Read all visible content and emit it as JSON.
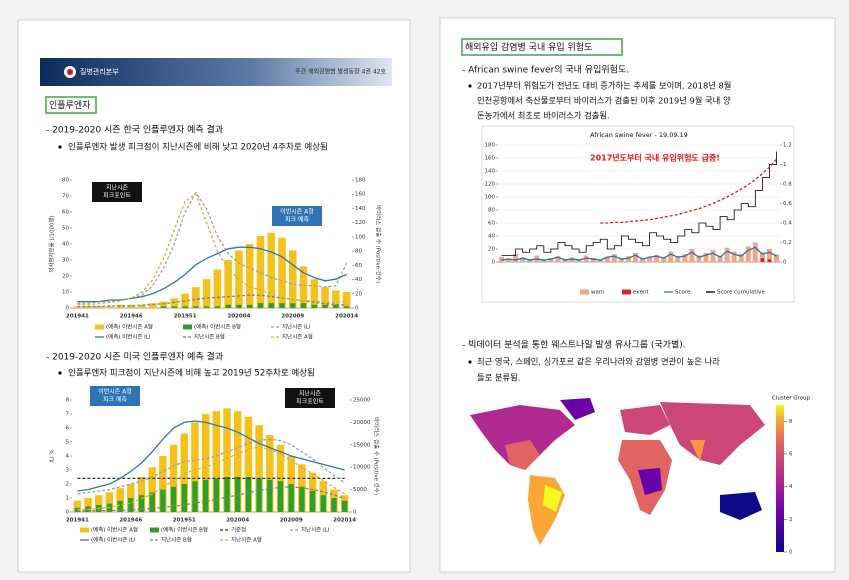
{
  "document": {
    "left": {
      "header": {
        "org": "질병관리본부",
        "issue": "주간 해외감염병 발생동향 4권 42호"
      },
      "section": "인플루엔자",
      "items": [
        {
          "heading": "- 2019-2020 시즌 한국 인플루엔자 예측 결과",
          "bullet": "인플루엔자 발생 피크점이 지난시즌에 비해 낮고 2020년 4주차로 예상됨"
        },
        {
          "heading": "- 2019-2020 시즌 미국 인플루엔자 예측 결과",
          "bullet": "인플루엔자 피크점이 지난시즌에 비해 높고 2019년 52주차로 예상됨"
        }
      ]
    },
    "right": {
      "section": "해외유입 감염병 국내 유입 위험도",
      "items": [
        {
          "heading": "- African swine fever의 국내 유입위험도.",
          "bullet": [
            "2017년부터 위험도가 전년도 대비 증가하는 추세를 보이며, 2018년 8월",
            "인천공항에서 축산물로부터 바이러스가 검출된 이후 2019년 9월 국내 양",
            "돈농가에서 최초로 바이러스가 검출됨."
          ]
        },
        {
          "heading": "- 빅데이터 분석을 통한 웨스트나일 발생 유사그룹 (국가별).",
          "bullet": [
            "최근 영국, 스페인, 싱가포르 같은 우리나라와 감염병 연관이 높은 나라",
            "들로 분류됨."
          ]
        }
      ]
    },
    "map": {
      "title": "Cluster Group",
      "range": [
        0,
        9
      ],
      "ticks": [
        0,
        2,
        4,
        6,
        8
      ]
    }
  },
  "chart_data": [
    {
      "type": "combo",
      "ylabel": "의사환자분율 (/1000명)",
      "y2label": "바이러스 검출 수 (Positive 건수)",
      "categories": [
        "201941",
        null,
        null,
        null,
        null,
        "201946",
        null,
        null,
        null,
        null,
        "201951",
        null,
        null,
        null,
        null,
        "202004",
        null,
        null,
        null,
        null,
        "202009",
        null,
        null,
        null,
        null,
        "202014"
      ],
      "ylim": [
        0,
        80
      ],
      "yticks": [
        0,
        10,
        20,
        30,
        40,
        50,
        60,
        70,
        80
      ],
      "y2lim": [
        0,
        180
      ],
      "y2ticks": [
        0,
        20,
        40,
        60,
        80,
        100,
        120,
        140,
        160,
        180
      ],
      "grid": false,
      "annotations": [
        {
          "lines": [
            "지난시즌",
            "피크포인트"
          ],
          "color": "#111111"
        },
        {
          "lines": [
            "이번시즌 A형",
            "피크 예측"
          ],
          "color": "#2e75b6"
        }
      ],
      "series": [
        {
          "name": "(예측) 이번시즌 A형",
          "kind": "bar",
          "color": "#f5c21b",
          "values": [
            1,
            1,
            1,
            1,
            2,
            2,
            2,
            3,
            4,
            6,
            9,
            13,
            18,
            24,
            30,
            36,
            40,
            45,
            47,
            44,
            36,
            26,
            18,
            13,
            11,
            10
          ]
        },
        {
          "name": "(예측) 이번시즌 B형",
          "kind": "bar",
          "color": "#2ca02c",
          "values": [
            0,
            0,
            0,
            0,
            0,
            0,
            0,
            0,
            1,
            1,
            1,
            1,
            1,
            1,
            2,
            2,
            2,
            3,
            3,
            3,
            3,
            3,
            2,
            2,
            2,
            1
          ]
        },
        {
          "name": "지난시즌 ILI",
          "kind": "line",
          "dash": true,
          "color": "#a0a0a0",
          "values": [
            3,
            3,
            4,
            4,
            5,
            6,
            8,
            14,
            25,
            40,
            60,
            72,
            62,
            45,
            34,
            28,
            25,
            22,
            19,
            17,
            15,
            14,
            14,
            13,
            14,
            28
          ]
        },
        {
          "name": "(예측) 이번시즌 ILI",
          "kind": "line",
          "color": "#2a7ab0",
          "values": [
            4,
            4,
            4,
            5,
            5,
            6,
            7,
            9,
            12,
            16,
            21,
            27,
            31,
            34,
            37,
            38,
            38,
            37,
            35,
            32,
            27,
            22,
            19,
            17,
            18,
            21
          ]
        },
        {
          "name": "지난시즌 B형",
          "kind": "line",
          "dash": true,
          "axis": "y2",
          "color": "#7f7f7f",
          "values": [
            2,
            2,
            2,
            3,
            3,
            3,
            4,
            5,
            6,
            8,
            10,
            12,
            14,
            15,
            16,
            17,
            18,
            18,
            16,
            14,
            12,
            10,
            8,
            6,
            5,
            4
          ]
        },
        {
          "name": "지난시즌 A형",
          "kind": "line",
          "dash": true,
          "axis": "y2",
          "color": "#d8b040",
          "values": [
            5,
            5,
            6,
            8,
            10,
            14,
            22,
            40,
            70,
            110,
            150,
            160,
            120,
            80,
            55,
            40,
            30,
            25,
            20,
            15,
            12,
            10,
            10,
            8,
            8,
            10
          ]
        }
      ]
    },
    {
      "type": "combo",
      "ylabel": "ILI %",
      "y2label": "바이러스 검출 수 (Positive 건수)",
      "categories": [
        "201941",
        null,
        null,
        null,
        null,
        "201946",
        null,
        null,
        null,
        null,
        "201951",
        null,
        null,
        null,
        null,
        "202004",
        null,
        null,
        null,
        null,
        "202009",
        null,
        null,
        null,
        null,
        "202014"
      ],
      "ylim": [
        0,
        8
      ],
      "yticks": [
        0,
        1,
        2,
        3,
        4,
        5,
        6,
        7,
        8
      ],
      "y2lim": [
        0,
        25000
      ],
      "y2ticks": [
        0,
        5000,
        10000,
        15000,
        20000,
        25000
      ],
      "grid": false,
      "annotations": [
        {
          "lines": [
            "이번시즌 A형",
            "피크 예측"
          ],
          "color": "#2e75b6"
        },
        {
          "lines": [
            "지난시즌",
            "피크포인트"
          ],
          "color": "#111111"
        }
      ],
      "series": [
        {
          "name": "(예측) 이번시즌 A형",
          "kind": "bar",
          "color": "#f5c21b",
          "values": [
            0.8,
            1.0,
            1.2,
            1.4,
            1.7,
            2.0,
            2.5,
            3.2,
            4.0,
            4.8,
            5.6,
            6.4,
            7.0,
            7.2,
            7.4,
            7.2,
            6.8,
            6.2,
            5.5,
            4.8,
            4.0,
            3.4,
            2.8,
            2.2,
            1.6,
            1.2
          ]
        },
        {
          "name": "(예측) 이번시즌 B형",
          "kind": "bar",
          "color": "#2ca02c",
          "values": [
            0.3,
            0.4,
            0.5,
            0.6,
            0.8,
            1.0,
            1.2,
            1.4,
            1.6,
            1.8,
            2.0,
            2.2,
            2.3,
            2.4,
            2.5,
            2.5,
            2.5,
            2.4,
            2.3,
            2.2,
            2.0,
            1.8,
            1.5,
            1.2,
            1.0,
            0.8
          ]
        },
        {
          "name": "기준점",
          "kind": "line",
          "dash": true,
          "color": "#333333",
          "values": [
            2.4,
            2.4,
            2.4,
            2.4,
            2.4,
            2.4,
            2.4,
            2.4,
            2.4,
            2.4,
            2.4,
            2.4,
            2.4,
            2.4,
            2.4,
            2.4,
            2.4,
            2.4,
            2.4,
            2.4,
            2.4,
            2.4,
            2.4,
            2.4,
            2.4,
            2.4
          ]
        },
        {
          "name": "지난시즌 ILI",
          "kind": "line",
          "dash": true,
          "color": "#a0a0a0",
          "values": [
            1.3,
            1.4,
            1.5,
            1.6,
            1.8,
            2.0,
            2.2,
            2.5,
            2.9,
            3.3,
            3.6,
            3.7,
            3.8,
            4.0,
            4.3,
            4.6,
            4.9,
            5.1,
            5.2,
            5.1,
            4.8,
            4.3,
            3.8,
            3.2,
            2.6,
            2.1
          ]
        },
        {
          "name": "(예측) 이번시즌 ILI",
          "kind": "line",
          "color": "#2a7ab0",
          "values": [
            1.5,
            1.6,
            1.8,
            2.0,
            2.4,
            2.9,
            3.5,
            4.3,
            5.2,
            6.0,
            6.4,
            6.5,
            6.4,
            6.2,
            6.0,
            5.7,
            5.3,
            4.9,
            4.6,
            4.3,
            4.0,
            3.8,
            3.6,
            3.4,
            3.2,
            3.0
          ]
        },
        {
          "name": "지난시즌 B형",
          "kind": "line",
          "dash": true,
          "axis": "y2",
          "color": "#7f7f7f",
          "values": [
            200,
            200,
            300,
            300,
            400,
            500,
            600,
            800,
            1000,
            1300,
            1600,
            2000,
            2400,
            2800,
            3300,
            3800,
            4300,
            4800,
            5200,
            5500,
            5600,
            5400,
            5000,
            4500,
            3800,
            3000
          ]
        },
        {
          "name": "지난시즌 A형",
          "kind": "line",
          "dash": true,
          "axis": "y2",
          "color": "#d8b040",
          "values": [
            500,
            600,
            800,
            1000,
            1500,
            2000,
            3000,
            4000,
            5500,
            7000,
            8500,
            9500,
            10000,
            11000,
            12000,
            13000,
            14000,
            14500,
            14000,
            13000,
            11500,
            10000,
            8500,
            7000,
            5500,
            4000
          ]
        }
      ]
    },
    {
      "type": "combo",
      "title": "African swine fever - 19.09.19",
      "categories": [
        null,
        null,
        null,
        null,
        null,
        null,
        null,
        null,
        null,
        null,
        null,
        null,
        null,
        null,
        null,
        null,
        null,
        null,
        null,
        null,
        null,
        null,
        null,
        null,
        null,
        null,
        null,
        null,
        null,
        null,
        null,
        null,
        null,
        null,
        null,
        null,
        null,
        null,
        null,
        null
      ],
      "ylim": [
        0,
        180
      ],
      "yticks": [
        0,
        20,
        40,
        60,
        80,
        100,
        120,
        140,
        160,
        180
      ],
      "y2lim": [
        0,
        1.2
      ],
      "y2ticks": [
        0,
        0.2,
        0.4,
        0.6,
        0.8,
        1,
        1.2
      ],
      "grid": true,
      "annotations": [
        {
          "lines": [
            "2017년도부터 국내 유입위험도 급증!"
          ],
          "color": "#e31a1c"
        }
      ],
      "series": [
        {
          "name": "warn",
          "kind": "bar",
          "color": "#f4a582",
          "values": [
            8,
            5,
            12,
            6,
            4,
            10,
            3,
            6,
            9,
            5,
            7,
            4,
            10,
            6,
            3,
            8,
            12,
            5,
            9,
            14,
            6,
            8,
            11,
            7,
            16,
            9,
            12,
            20,
            10,
            14,
            18,
            9,
            22,
            16,
            12,
            24,
            30,
            15,
            20,
            12
          ]
        },
        {
          "name": "event",
          "kind": "bar",
          "color": "#d62728",
          "values": [
            0,
            0,
            0,
            0,
            0,
            0,
            0,
            0,
            0,
            0,
            0,
            0,
            0,
            0,
            0,
            0,
            0,
            0,
            0,
            0,
            0,
            0,
            0,
            0,
            0,
            0,
            0,
            0,
            0,
            0,
            0,
            0,
            0,
            0,
            0,
            0,
            0,
            6,
            4,
            0
          ]
        },
        {
          "name": "Score",
          "kind": "line",
          "axis": "y2",
          "color": "#1f77b4",
          "values": [
            0.02,
            0.03,
            0.02,
            0.04,
            0.02,
            0.03,
            0.02,
            0.03,
            0.05,
            0.02,
            0.03,
            0.02,
            0.04,
            0.03,
            0.02,
            0.05,
            0.06,
            0.03,
            0.04,
            0.07,
            0.03,
            0.05,
            0.06,
            0.04,
            0.08,
            0.05,
            0.06,
            0.1,
            0.05,
            0.07,
            0.09,
            0.05,
            0.11,
            0.08,
            0.06,
            0.12,
            0.15,
            0.08,
            0.1,
            0.06
          ]
        },
        {
          "name": "Score cumulative",
          "kind": "line",
          "step": true,
          "color": "#000000",
          "values": [
            10,
            10,
            20,
            15,
            20,
            25,
            15,
            20,
            30,
            25,
            20,
            15,
            25,
            30,
            35,
            20,
            25,
            40,
            35,
            30,
            25,
            45,
            40,
            35,
            30,
            40,
            50,
            45,
            60,
            55,
            50,
            70,
            65,
            80,
            90,
            85,
            110,
            130,
            150,
            170
          ]
        },
        {
          "kind": "line",
          "dash": true,
          "color": "#e31a1c",
          "values": [
            null,
            null,
            null,
            null,
            null,
            null,
            null,
            null,
            null,
            null,
            null,
            null,
            null,
            null,
            60,
            60,
            61,
            61,
            62,
            63,
            64,
            65,
            67,
            69,
            71,
            73,
            76,
            79,
            82,
            86,
            90,
            95,
            100,
            106,
            112,
            119,
            127,
            136,
            146,
            158
          ]
        }
      ]
    }
  ]
}
